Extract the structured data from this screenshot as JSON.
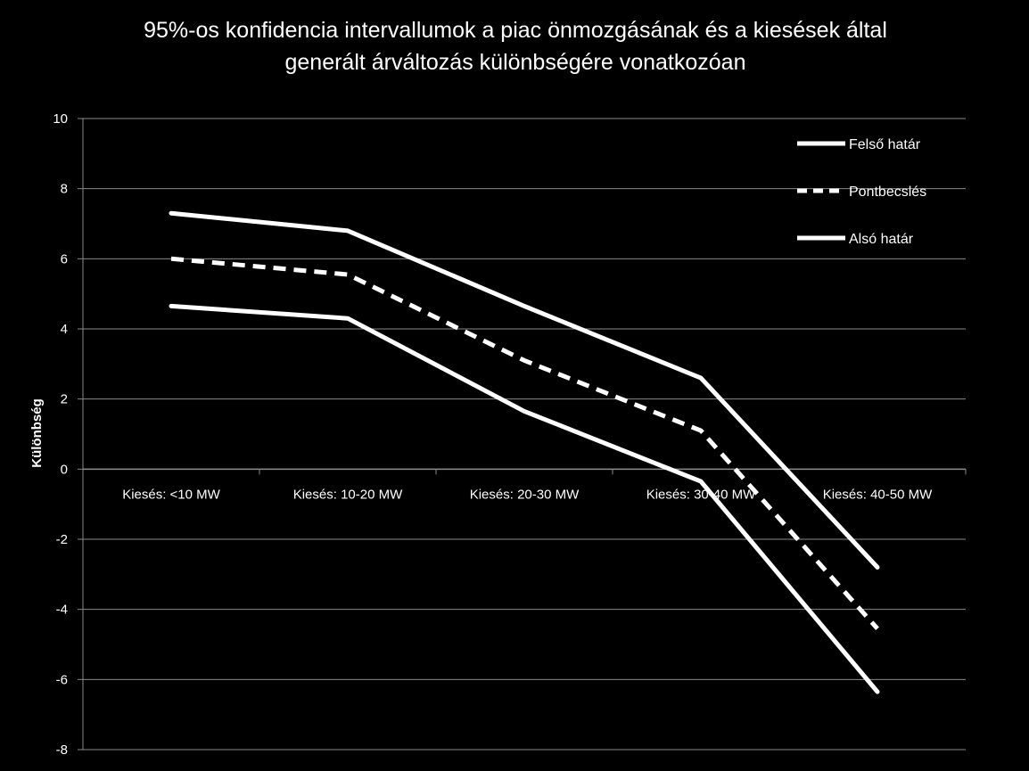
{
  "chart_data": {
    "type": "line",
    "title_lines": [
      "95%-os konfidencia intervallumok a piac önmozgásának és a kiesések által",
      "generált árváltozás különbségére vonatkozóan"
    ],
    "xlabel": "",
    "ylabel": "Különbség",
    "categories": [
      "Kiesés: <10 MW",
      "Kiesés: 10-20 MW",
      "Kiesés:  20-30 MW",
      "Kiesés: 30-40 MW",
      "Kiesés: 40-50 MW"
    ],
    "ylim": [
      -8,
      10
    ],
    "yticks": [
      10,
      8,
      6,
      4,
      2,
      0,
      -2,
      -4,
      -6,
      -8
    ],
    "grid": true,
    "legend_position": "top-right",
    "series": [
      {
        "name": "Felső határ",
        "values": [
          7.3,
          6.8,
          4.65,
          2.6,
          -2.8
        ],
        "color": "#ffffff",
        "dash": "solid"
      },
      {
        "name": "Pontbecslés",
        "values": [
          6.0,
          5.55,
          3.1,
          1.1,
          -4.55
        ],
        "color": "#ffffff",
        "dash": "dashed"
      },
      {
        "name": "Alsó határ",
        "values": [
          4.65,
          4.3,
          1.65,
          -0.35,
          -6.35
        ],
        "color": "#ffffff",
        "dash": "solid"
      }
    ]
  }
}
